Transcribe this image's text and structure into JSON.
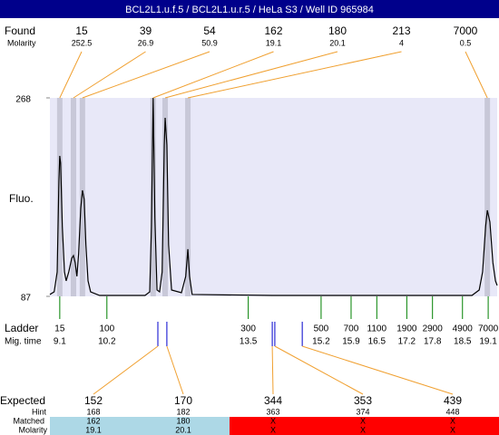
{
  "chart_data": {
    "type": "electropherogram",
    "title": "BCL2L1.u.f.5 / BCL2L1.u.r.5 / HeLa S3 / Well ID 965984",
    "y_label": "Fluo.",
    "ylim": [
      87,
      268
    ],
    "yticks": [
      268,
      87
    ],
    "xlim": [
      8.87,
      19.31
    ],
    "plot_color": "#e8e8f8",
    "peak_band_color": "#c8c8d8",
    "link_color": "#f0a030",
    "trace": {
      "color": "#000000",
      "x": [
        8.87,
        8.97,
        9.04,
        9.08,
        9.1,
        9.12,
        9.16,
        9.21,
        9.25,
        9.31,
        9.38,
        9.42,
        9.46,
        9.5,
        9.54,
        9.59,
        9.63,
        9.67,
        9.71,
        9.76,
        9.82,
        10.03,
        11.09,
        11.2,
        11.24,
        11.28,
        11.32,
        11.37,
        11.43,
        11.49,
        11.54,
        11.56,
        11.6,
        11.64,
        11.71,
        11.94,
        12.04,
        12.09,
        12.13,
        12.19,
        14.06,
        18.72,
        18.89,
        18.97,
        19.04,
        19.08,
        19.14,
        19.21,
        19.27,
        19.31
      ],
      "values": [
        88.7,
        91.1,
        109.3,
        192.0,
        215.1,
        208.5,
        150.6,
        109.3,
        101.1,
        109.3,
        121.7,
        124.2,
        117.6,
        105.2,
        125.8,
        167.2,
        183.7,
        175.4,
        134.1,
        101.1,
        91.1,
        87.8,
        87.8,
        91.1,
        150.6,
        268.0,
        158.9,
        92.8,
        91.1,
        109.3,
        225.0,
        249.8,
        225.0,
        134.1,
        92.8,
        90.3,
        105.2,
        130.0,
        105.2,
        88.7,
        87.8,
        87.8,
        92.8,
        109.3,
        150.6,
        165.5,
        154.8,
        117.6,
        101.1,
        96.9
      ]
    },
    "found": {
      "label": "Found",
      "molarity_label": "Molarity",
      "peaks": [
        {
          "size": 15,
          "molarity": 252.5,
          "time": 9.1
        },
        {
          "size": 39,
          "molarity": 26.9,
          "time": 9.42
        },
        {
          "size": 54,
          "molarity": 50.9,
          "time": 9.63
        },
        {
          "size": 162,
          "molarity": 19.1,
          "time": 11.28
        },
        {
          "size": 180,
          "molarity": 20.1,
          "time": 11.56
        },
        {
          "size": 213,
          "molarity": 4,
          "time": 12.09
        },
        {
          "size": 7000,
          "molarity": 0.5,
          "time": 19.08
        }
      ]
    },
    "ladder": {
      "label": "Ladder",
      "time_label": "Mig. time",
      "color": "#008000",
      "sizes": [
        15,
        100,
        300,
        500,
        700,
        1100,
        1900,
        2900,
        4900,
        7000
      ],
      "times": [
        9.1,
        10.2,
        13.5,
        15.2,
        15.9,
        16.5,
        17.2,
        17.8,
        18.5,
        19.1
      ]
    },
    "expected": {
      "label": "Expected",
      "hint_label": "Hint",
      "matched_label": "Matched",
      "molarity_label": "Molarity",
      "marker_color": "#0000cc",
      "rows": [
        {
          "size": 152,
          "hint": 168,
          "matched": 162,
          "molarity": 19.1,
          "time": 11.39,
          "color": "#add8e6"
        },
        {
          "size": 170,
          "hint": 182,
          "matched": 180,
          "molarity": 20.1,
          "time": 11.6,
          "color": "#add8e6"
        },
        {
          "size": 344,
          "hint": 363,
          "matched": "X",
          "molarity": "X",
          "time": 14.06,
          "color": "#ff0000"
        },
        {
          "size": 353,
          "hint": 374,
          "matched": "X",
          "molarity": "X",
          "time": 14.12,
          "color": "#ff0000"
        },
        {
          "size": 439,
          "hint": 448,
          "matched": "X",
          "molarity": "X",
          "time": 14.76,
          "color": "#ff0000"
        }
      ]
    }
  }
}
